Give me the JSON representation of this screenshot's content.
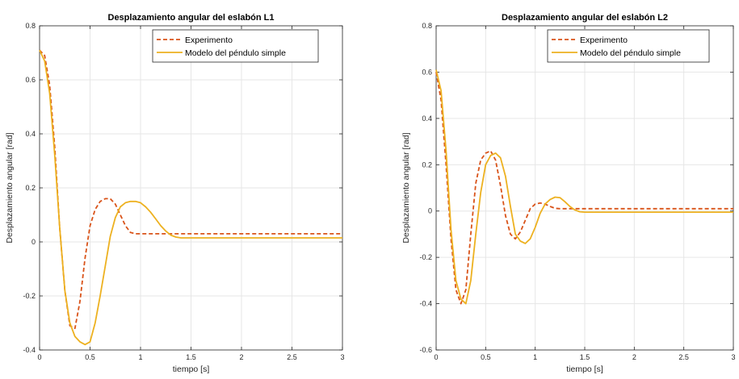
{
  "chart_data": [
    {
      "type": "line",
      "title": "Desplazamiento angular del eslabón L1",
      "xlabel": "tiempo [s]",
      "ylabel": "Desplazamiento angular [rad]",
      "xlim": [
        0,
        3
      ],
      "ylim": [
        -0.4,
        0.8
      ],
      "xticks": [
        0,
        0.5,
        1,
        1.5,
        2,
        2.5,
        3
      ],
      "xtick_labels": [
        "0",
        "0.5",
        "1",
        "1.5",
        "2",
        "2.5",
        "3"
      ],
      "yticks": [
        -0.4,
        -0.2,
        0,
        0.2,
        0.4,
        0.6,
        0.8
      ],
      "ytick_labels": [
        "-0.4",
        "-0.2",
        "0",
        "0.2",
        "0.4",
        "0.6",
        "0.8"
      ],
      "grid": true,
      "legend_position": "top-right",
      "series": [
        {
          "name": "Experimento",
          "color": "#D95319",
          "style": "dashed",
          "x": [
            0,
            0.05,
            0.1,
            0.15,
            0.2,
            0.25,
            0.3,
            0.35,
            0.4,
            0.45,
            0.5,
            0.55,
            0.6,
            0.65,
            0.7,
            0.75,
            0.8,
            0.85,
            0.9,
            0.95,
            1.0,
            1.1,
            1.5,
            2.0,
            2.5,
            3.0
          ],
          "y": [
            0.71,
            0.69,
            0.58,
            0.35,
            0.05,
            -0.18,
            -0.31,
            -0.32,
            -0.22,
            -0.06,
            0.06,
            0.12,
            0.15,
            0.16,
            0.16,
            0.14,
            0.1,
            0.06,
            0.035,
            0.03,
            0.03,
            0.03,
            0.03,
            0.03,
            0.03,
            0.03
          ]
        },
        {
          "name": "Modelo del péndulo simple",
          "color": "#EDB120",
          "style": "solid",
          "x": [
            0,
            0.05,
            0.1,
            0.15,
            0.2,
            0.25,
            0.3,
            0.35,
            0.4,
            0.45,
            0.5,
            0.55,
            0.6,
            0.65,
            0.7,
            0.75,
            0.8,
            0.85,
            0.9,
            0.95,
            1.0,
            1.05,
            1.1,
            1.15,
            1.2,
            1.25,
            1.3,
            1.35,
            1.4,
            1.5,
            2.0,
            2.5,
            3.0
          ],
          "y": [
            0.71,
            0.67,
            0.55,
            0.32,
            0.05,
            -0.18,
            -0.3,
            -0.35,
            -0.37,
            -0.38,
            -0.37,
            -0.3,
            -0.2,
            -0.09,
            0.02,
            0.09,
            0.13,
            0.145,
            0.15,
            0.15,
            0.145,
            0.13,
            0.11,
            0.085,
            0.06,
            0.04,
            0.025,
            0.018,
            0.015,
            0.015,
            0.015,
            0.015,
            0.015
          ]
        }
      ]
    },
    {
      "type": "line",
      "title": "Desplazamiento angular del eslabón L2",
      "xlabel": "tiempo [s]",
      "ylabel": "Desplazamiento angular [rad]",
      "xlim": [
        0,
        3
      ],
      "ylim": [
        -0.6,
        0.8
      ],
      "xticks": [
        0,
        0.5,
        1,
        1.5,
        2,
        2.5,
        3
      ],
      "xtick_labels": [
        "0",
        "0.5",
        "1",
        "1.5",
        "2",
        "2.5",
        "3"
      ],
      "yticks": [
        -0.6,
        -0.4,
        -0.2,
        0,
        0.2,
        0.4,
        0.6,
        0.8
      ],
      "ytick_labels": [
        "-0.6",
        "-0.4",
        "-0.2",
        "0",
        "0.2",
        "0.4",
        "0.6",
        "0.8"
      ],
      "grid": true,
      "legend_position": "top-right",
      "series": [
        {
          "name": "Experimento",
          "color": "#D95319",
          "style": "dashed",
          "x": [
            0,
            0.05,
            0.1,
            0.15,
            0.2,
            0.25,
            0.3,
            0.35,
            0.4,
            0.45,
            0.5,
            0.55,
            0.6,
            0.65,
            0.7,
            0.75,
            0.8,
            0.85,
            0.9,
            0.95,
            1.0,
            1.05,
            1.1,
            1.15,
            1.2,
            1.25,
            1.3,
            1.5,
            2.0,
            2.5,
            3.0
          ],
          "y": [
            0.6,
            0.48,
            0.2,
            -0.12,
            -0.34,
            -0.4,
            -0.34,
            -0.1,
            0.12,
            0.22,
            0.25,
            0.26,
            0.22,
            0.11,
            -0.02,
            -0.1,
            -0.12,
            -0.09,
            -0.04,
            0.01,
            0.03,
            0.035,
            0.03,
            0.02,
            0.012,
            0.01,
            0.01,
            0.01,
            0.01,
            0.01,
            0.01
          ]
        },
        {
          "name": "Modelo del péndulo simple",
          "color": "#EDB120",
          "style": "solid",
          "x": [
            0,
            0.05,
            0.1,
            0.15,
            0.2,
            0.25,
            0.3,
            0.35,
            0.4,
            0.45,
            0.5,
            0.55,
            0.6,
            0.65,
            0.7,
            0.75,
            0.8,
            0.85,
            0.9,
            0.95,
            1.0,
            1.05,
            1.1,
            1.15,
            1.2,
            1.25,
            1.3,
            1.35,
            1.4,
            1.45,
            1.5,
            2.0,
            2.5,
            3.0
          ],
          "y": [
            0.61,
            0.52,
            0.26,
            -0.08,
            -0.3,
            -0.38,
            -0.4,
            -0.3,
            -0.1,
            0.08,
            0.2,
            0.24,
            0.25,
            0.23,
            0.15,
            0.02,
            -0.1,
            -0.13,
            -0.14,
            -0.12,
            -0.07,
            -0.01,
            0.03,
            0.05,
            0.06,
            0.058,
            0.04,
            0.02,
            0.005,
            -0.003,
            -0.005,
            -0.005,
            -0.005,
            -0.005
          ]
        }
      ]
    }
  ]
}
